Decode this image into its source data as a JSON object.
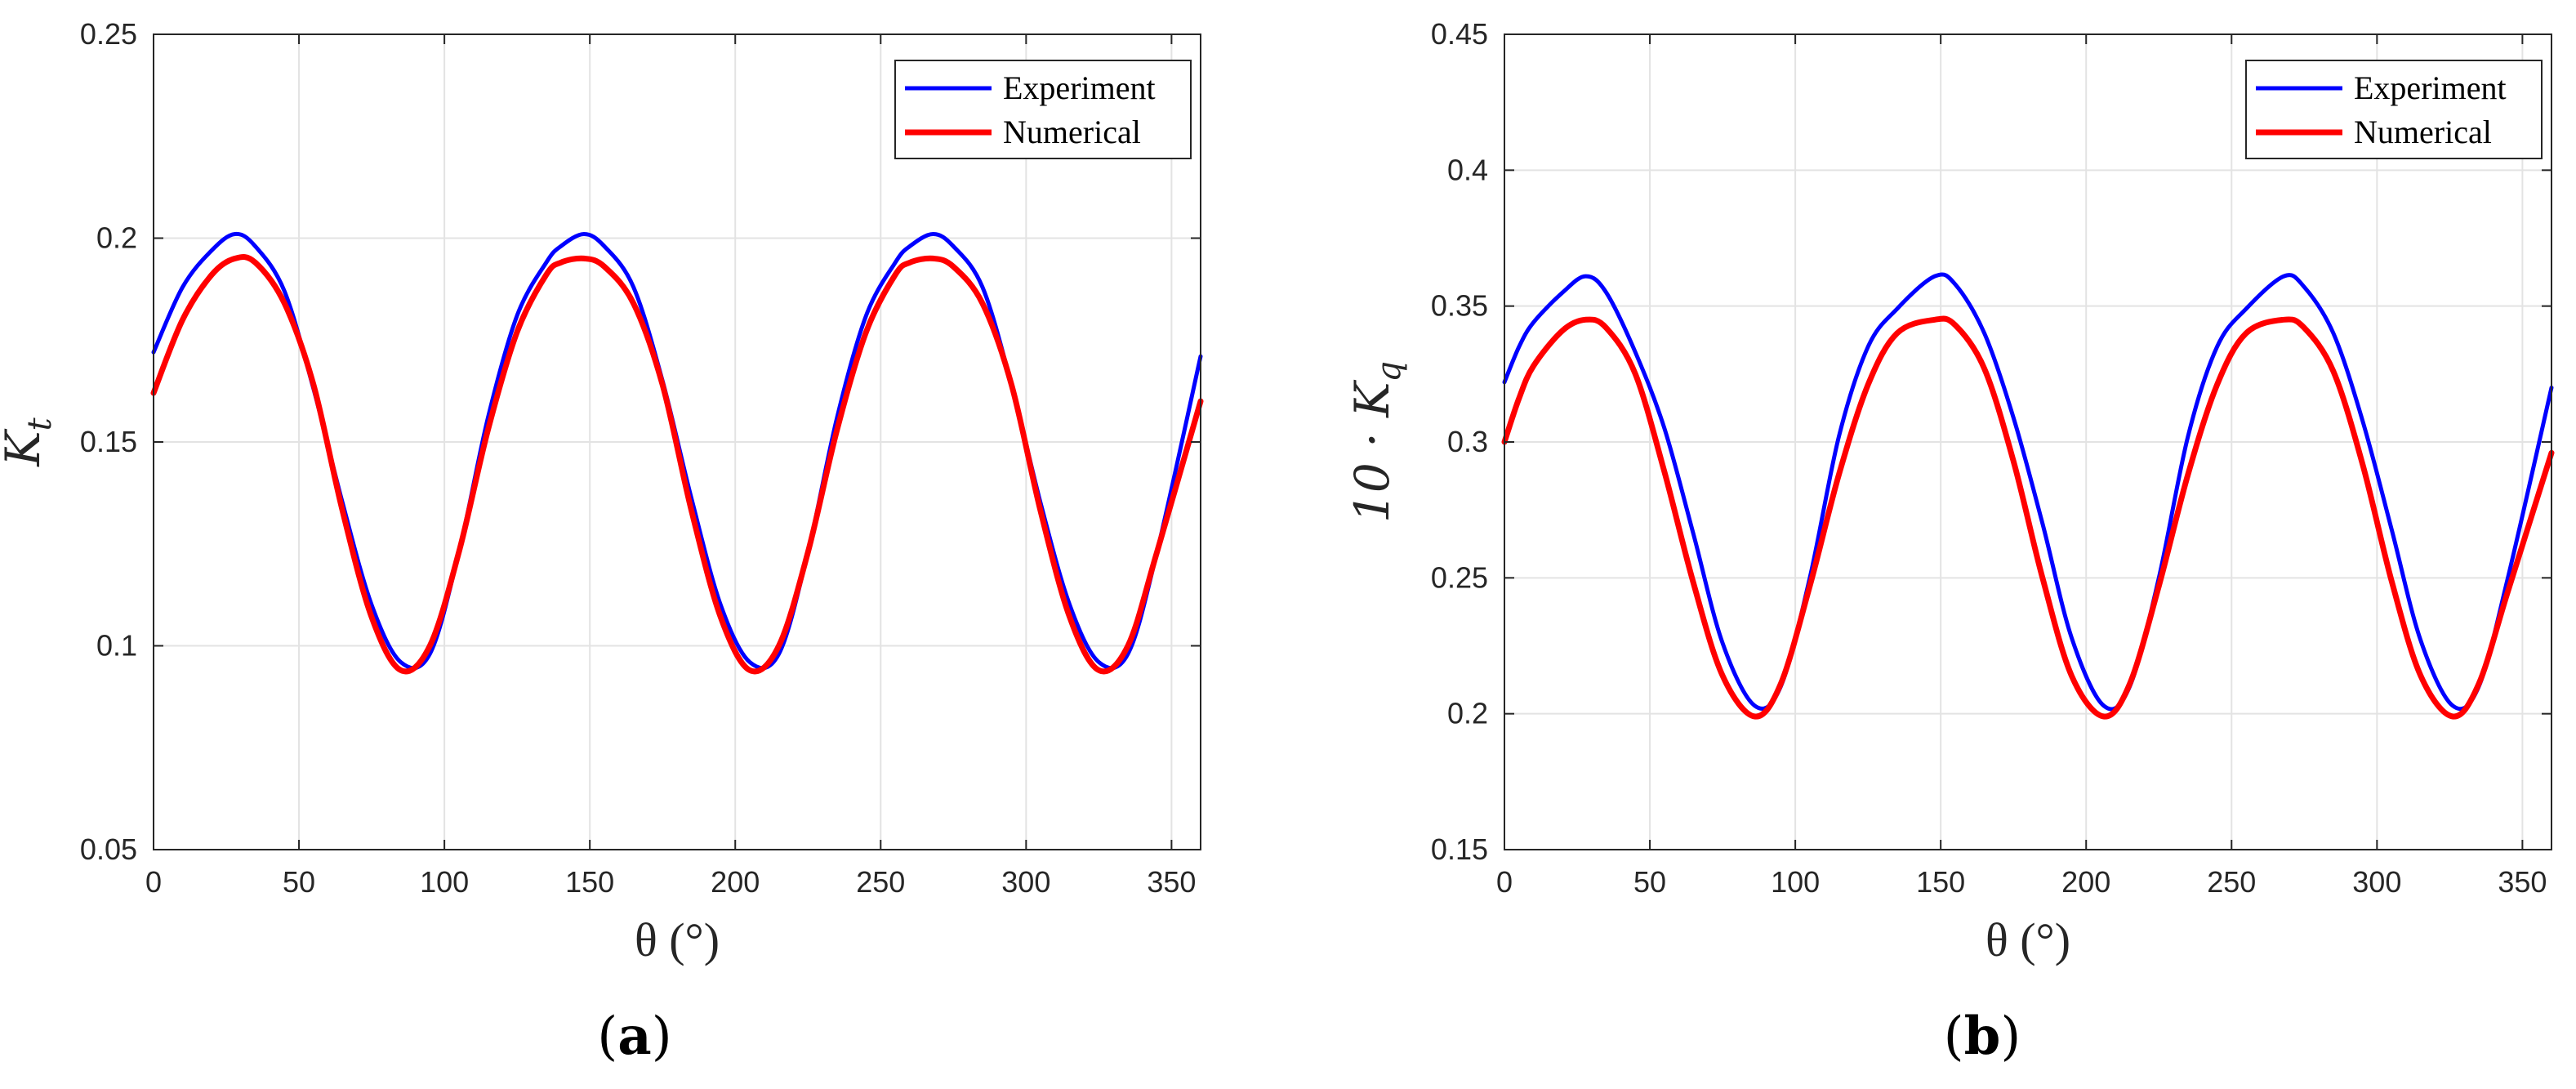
{
  "chart_data": [
    {
      "type": "line",
      "panel_label": "(a)",
      "xlabel": "θ (°)",
      "ylabel_main": "K",
      "ylabel_sub": "t",
      "xlim": [
        0,
        360
      ],
      "ylim": [
        0.05,
        0.25
      ],
      "xticks": [
        0,
        50,
        100,
        150,
        200,
        250,
        300,
        350
      ],
      "xtick_labels": [
        "0",
        "50",
        "100",
        "150",
        "200",
        "250",
        "300",
        "350"
      ],
      "yticks": [
        0.05,
        0.1,
        0.15,
        0.2,
        0.25
      ],
      "ytick_labels": [
        "0.05",
        "0.1",
        "0.15",
        "0.2",
        "0.25"
      ],
      "grid": true,
      "legend_position": "top-right",
      "x": [
        0,
        10,
        20,
        28,
        35,
        45,
        55,
        65,
        75,
        85,
        95,
        105,
        115,
        125,
        135,
        140,
        148,
        155,
        165,
        175,
        185,
        195,
        205,
        215,
        225,
        235,
        245,
        255,
        260,
        268,
        275,
        285,
        295,
        305,
        315,
        325,
        335,
        345,
        360
      ],
      "series": [
        {
          "name": "Experiment",
          "color": "#0000ff",
          "values": [
            0.172,
            0.188,
            0.197,
            0.201,
            0.198,
            0.187,
            0.163,
            0.135,
            0.11,
            0.096,
            0.098,
            0.123,
            0.156,
            0.181,
            0.194,
            0.198,
            0.201,
            0.198,
            0.188,
            0.165,
            0.136,
            0.11,
            0.096,
            0.098,
            0.123,
            0.156,
            0.181,
            0.194,
            0.198,
            0.201,
            0.198,
            0.188,
            0.164,
            0.135,
            0.11,
            0.096,
            0.098,
            0.123,
            0.171
          ]
        },
        {
          "name": "Numerical",
          "color": "#ff0000",
          "values": [
            0.162,
            0.18,
            0.191,
            0.195,
            0.194,
            0.184,
            0.164,
            0.133,
            0.107,
            0.094,
            0.1,
            0.123,
            0.153,
            0.177,
            0.191,
            0.194,
            0.195,
            0.193,
            0.184,
            0.164,
            0.133,
            0.107,
            0.094,
            0.1,
            0.123,
            0.153,
            0.177,
            0.191,
            0.194,
            0.195,
            0.193,
            0.184,
            0.164,
            0.133,
            0.107,
            0.094,
            0.1,
            0.123,
            0.16
          ]
        }
      ]
    },
    {
      "type": "line",
      "panel_label": "(b)",
      "xlabel": "θ (°)",
      "ylabel_main": "10 · K",
      "ylabel_sub": "q",
      "xlim": [
        0,
        360
      ],
      "ylim": [
        0.15,
        0.45
      ],
      "xticks": [
        0,
        50,
        100,
        150,
        200,
        250,
        300,
        350
      ],
      "xtick_labels": [
        "0",
        "50",
        "100",
        "150",
        "200",
        "250",
        "300",
        "350"
      ],
      "yticks": [
        0.15,
        0.2,
        0.25,
        0.3,
        0.35,
        0.4,
        0.45
      ],
      "ytick_labels": [
        "0.15",
        "0.2",
        "0.25",
        "0.3",
        "0.35",
        "0.4",
        "0.45"
      ],
      "grid": true,
      "legend_position": "top-right",
      "x": [
        0,
        5,
        10,
        20,
        28,
        35,
        45,
        55,
        65,
        75,
        86,
        95,
        105,
        115,
        125,
        135,
        148,
        155,
        165,
        175,
        185,
        195,
        206,
        215,
        225,
        235,
        245,
        255,
        268,
        275,
        285,
        295,
        305,
        315,
        326,
        335,
        345,
        360
      ],
      "series": [
        {
          "name": "Experiment",
          "color": "#0000ff",
          "values": [
            0.322,
            0.335,
            0.344,
            0.355,
            0.361,
            0.355,
            0.333,
            0.305,
            0.266,
            0.226,
            0.203,
            0.21,
            0.25,
            0.302,
            0.335,
            0.349,
            0.361,
            0.358,
            0.34,
            0.309,
            0.27,
            0.228,
            0.203,
            0.21,
            0.25,
            0.302,
            0.335,
            0.349,
            0.361,
            0.357,
            0.34,
            0.308,
            0.268,
            0.227,
            0.203,
            0.21,
            0.25,
            0.32
          ]
        },
        {
          "name": "Numerical",
          "color": "#ff0000",
          "values": [
            0.3,
            0.316,
            0.328,
            0.341,
            0.345,
            0.342,
            0.325,
            0.289,
            0.248,
            0.214,
            0.199,
            0.211,
            0.247,
            0.288,
            0.321,
            0.34,
            0.345,
            0.343,
            0.327,
            0.293,
            0.25,
            0.214,
            0.199,
            0.211,
            0.247,
            0.288,
            0.321,
            0.34,
            0.345,
            0.342,
            0.326,
            0.292,
            0.249,
            0.214,
            0.199,
            0.211,
            0.245,
            0.296
          ]
        }
      ]
    }
  ]
}
